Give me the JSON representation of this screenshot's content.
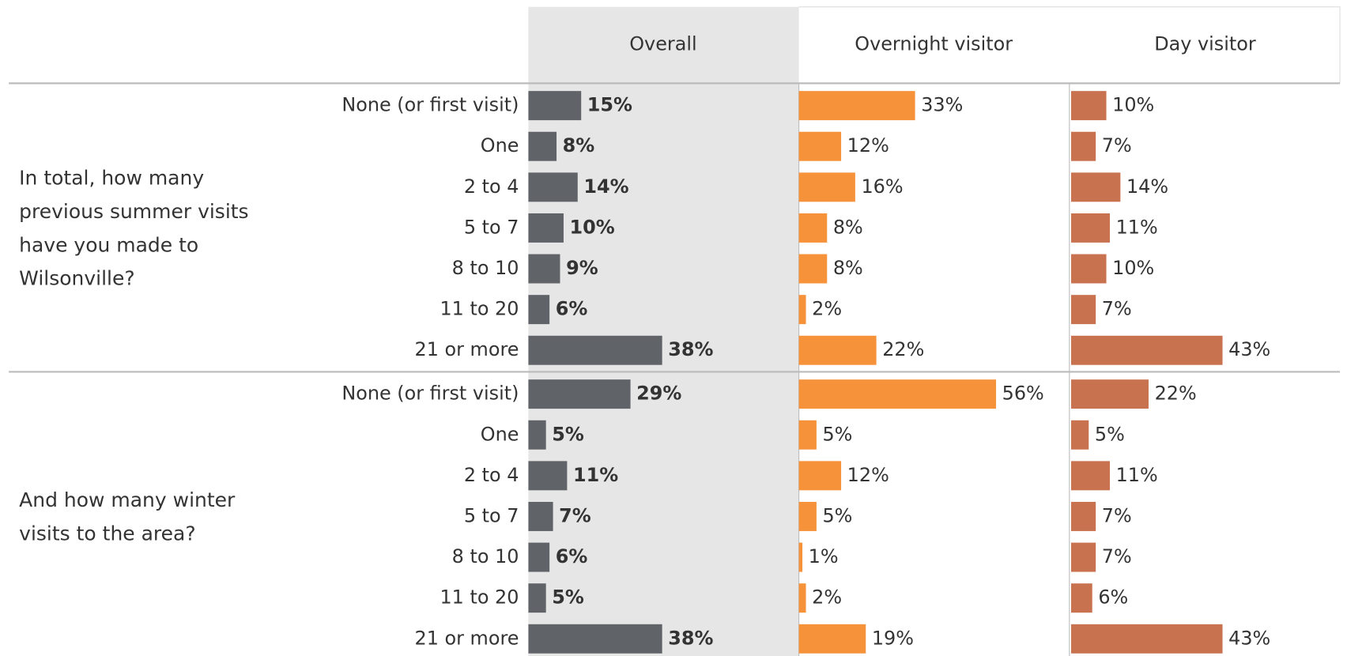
{
  "chart_data": [
    {
      "type": "bar",
      "title": "In total, how many previous summer visits have you made to Wilsonville?",
      "categories": [
        "None (or first visit)",
        "One",
        "2 to 4",
        "5 to 7",
        "8 to 10",
        "11 to 20",
        "21 or more"
      ],
      "series": [
        {
          "name": "Overall",
          "color": "#606368",
          "values": [
            15,
            8,
            14,
            10,
            9,
            6,
            38
          ],
          "value_labels": [
            "15%",
            "8%",
            "14%",
            "10%",
            "9%",
            "6%",
            "38%"
          ]
        },
        {
          "name": "Overnight visitor",
          "color": "#f5923a",
          "values": [
            33,
            12,
            16,
            8,
            8,
            2,
            22
          ],
          "value_labels": [
            "33%",
            "12%",
            "16%",
            "8%",
            "8%",
            "2%",
            "22%"
          ]
        },
        {
          "name": "Day visitor",
          "color": "#c9724f",
          "values": [
            10,
            7,
            14,
            11,
            10,
            7,
            43
          ],
          "value_labels": [
            "10%",
            "7%",
            "14%",
            "11%",
            "10%",
            "7%",
            "43%"
          ]
        }
      ]
    },
    {
      "type": "bar",
      "title": "And how many winter visits to the area?",
      "categories": [
        "None (or first visit)",
        "One",
        "2 to 4",
        "5 to 7",
        "8 to 10",
        "11 to 20",
        "21 or more"
      ],
      "series": [
        {
          "name": "Overall",
          "color": "#606368",
          "values": [
            29,
            5,
            11,
            7,
            6,
            5,
            38
          ],
          "value_labels": [
            "29%",
            "5%",
            "11%",
            "7%",
            "6%",
            "5%",
            "38%"
          ]
        },
        {
          "name": "Overnight visitor",
          "color": "#f5923a",
          "values": [
            56,
            5,
            12,
            5,
            1,
            2,
            19
          ],
          "value_labels": [
            "56%",
            "5%",
            "12%",
            "5%",
            "1%",
            "2%",
            "19%"
          ]
        },
        {
          "name": "Day visitor",
          "color": "#c9724f",
          "values": [
            22,
            5,
            11,
            7,
            7,
            6,
            43
          ],
          "value_labels": [
            "22%",
            "5%",
            "11%",
            "7%",
            "7%",
            "6%",
            "43%"
          ]
        }
      ]
    }
  ]
}
